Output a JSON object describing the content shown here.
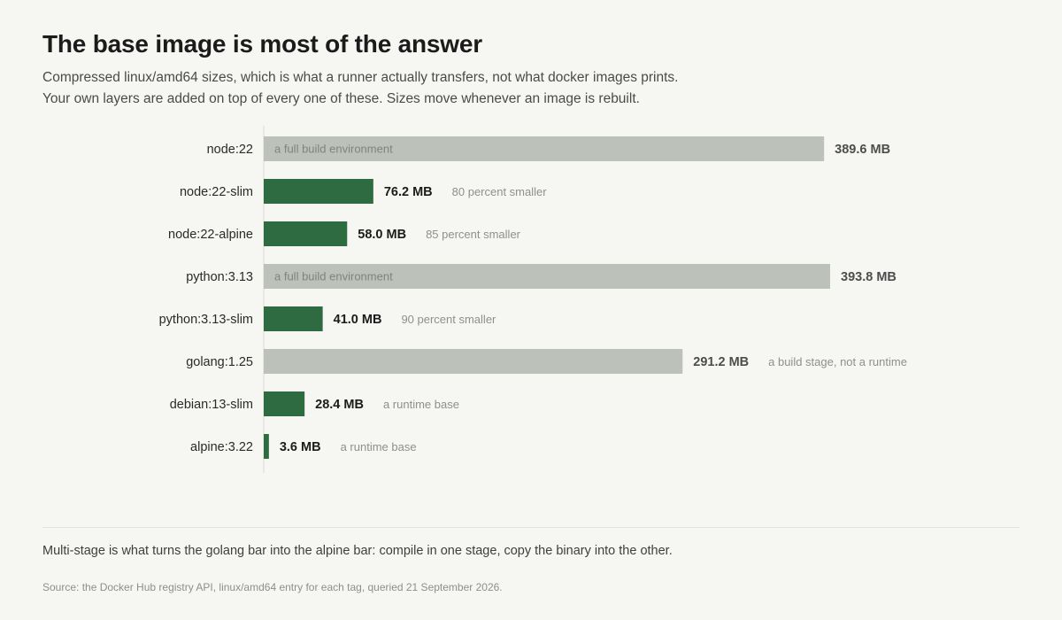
{
  "header": {
    "title": "The base image is most of the answer",
    "subtitle_line1": "Compressed linux/amd64 sizes, which is what a runner actually transfers, not what docker images prints.",
    "subtitle_line2": "Your own layers are added on top of every one of these. Sizes move whenever an image is rebuilt."
  },
  "colors": {
    "full_build": "#bcc1ba",
    "slim": "#2e6b40",
    "label_dark": "#1b1b1b",
    "label_muted": "#4d4d4d",
    "annotation": "#8f8f8b",
    "axis": "#d8d8d3"
  },
  "chart_data": {
    "type": "bar",
    "orientation": "horizontal",
    "unit": "MB",
    "categories": [
      "node:22",
      "node:22-slim",
      "node:22-alpine",
      "python:3.13",
      "python:3.13-slim",
      "golang:1.25",
      "debian:13-slim",
      "alpine:3.22"
    ],
    "values": [
      389.6,
      76.2,
      58.0,
      393.8,
      41.0,
      291.2,
      28.4,
      3.6
    ],
    "value_labels": [
      "389.6 MB",
      "76.2 MB",
      "58.0 MB",
      "393.8 MB",
      "41.0 MB",
      "291.2 MB",
      "28.4 MB",
      "3.6 MB"
    ],
    "kinds": [
      "full",
      "slim",
      "slim",
      "full",
      "slim",
      "full",
      "slim",
      "slim"
    ],
    "inside_labels": [
      "a full build environment",
      "",
      "",
      "a full build environment",
      "",
      "",
      "",
      ""
    ],
    "annotations": [
      "",
      "80 percent smaller",
      "85 percent smaller",
      "",
      "90 percent smaller",
      "a build stage, not a runtime",
      "a runtime base",
      "a runtime base"
    ],
    "xlim": [
      0,
      393.8
    ],
    "grid": false,
    "legend": "none"
  },
  "footer": {
    "note": "Multi-stage is what turns the golang bar into the alpine bar: compile in one stage, copy the binary into the other.",
    "source": "Source: the Docker Hub registry API, linux/amd64 entry for each tag, queried 21 September 2026."
  }
}
